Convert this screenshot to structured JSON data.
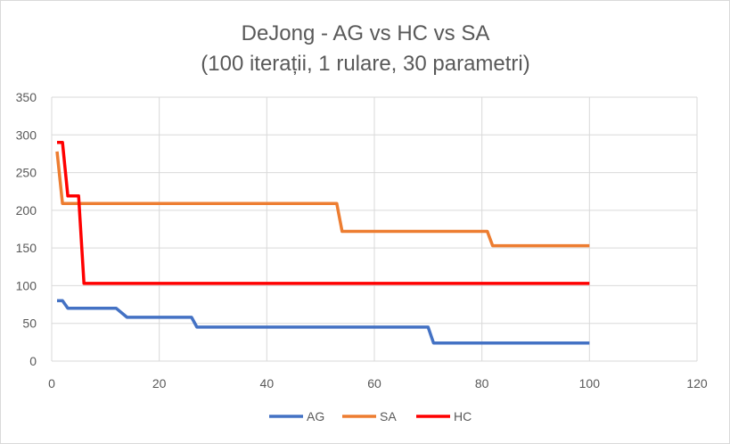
{
  "chart_data": {
    "type": "line",
    "title": "DeJong - AG vs HC vs SA",
    "subtitle": "(100 iterații, 1 rulare, 30 parametri)",
    "xlabel": "",
    "ylabel": "",
    "xlim": [
      0,
      120
    ],
    "ylim": [
      0,
      350
    ],
    "xticks": [
      0,
      20,
      40,
      60,
      80,
      100,
      120
    ],
    "yticks": [
      0,
      50,
      100,
      150,
      200,
      250,
      300,
      350
    ],
    "grid": true,
    "legend_position": "bottom",
    "series": [
      {
        "name": "AG",
        "color": "#4472c4",
        "points": [
          [
            1,
            80
          ],
          [
            2,
            80
          ],
          [
            3,
            70
          ],
          [
            12,
            70
          ],
          [
            14,
            58
          ],
          [
            26,
            58
          ],
          [
            27,
            45
          ],
          [
            70,
            45
          ],
          [
            71,
            24
          ],
          [
            100,
            24
          ]
        ]
      },
      {
        "name": "SA",
        "color": "#ed7d31",
        "points": [
          [
            1,
            278
          ],
          [
            2,
            209
          ],
          [
            53,
            209
          ],
          [
            54,
            172
          ],
          [
            81,
            172
          ],
          [
            82,
            153
          ],
          [
            100,
            153
          ]
        ]
      },
      {
        "name": "HC",
        "color": "#ff0000",
        "points": [
          [
            1,
            290
          ],
          [
            2,
            290
          ],
          [
            3,
            219
          ],
          [
            5,
            219
          ],
          [
            6,
            103
          ],
          [
            100,
            103
          ]
        ]
      }
    ]
  }
}
